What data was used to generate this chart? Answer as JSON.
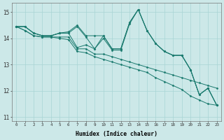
{
  "xlabel": "Humidex (Indice chaleur)",
  "xlim": [
    -0.5,
    23.5
  ],
  "ylim": [
    10.85,
    15.35
  ],
  "yticks": [
    11,
    12,
    13,
    14,
    15
  ],
  "xticks": [
    0,
    1,
    2,
    3,
    4,
    5,
    6,
    7,
    8,
    9,
    10,
    11,
    12,
    13,
    14,
    15,
    16,
    17,
    18,
    19,
    20,
    21,
    22,
    23
  ],
  "bg_color": "#cce8e8",
  "line_color": "#1a7a6e",
  "grid_color": "#a8d4d4",
  "lines": [
    [
      14.45,
      14.45,
      14.2,
      14.1,
      14.1,
      14.2,
      14.2,
      14.45,
      14.05,
      13.6,
      14.1,
      13.6,
      13.6,
      14.6,
      15.1,
      14.3,
      13.8,
      13.5,
      13.35,
      13.35,
      12.8,
      11.85,
      12.1,
      11.45
    ],
    [
      14.45,
      14.45,
      14.2,
      14.1,
      14.1,
      14.2,
      14.25,
      14.5,
      14.1,
      14.1,
      14.1,
      13.6,
      13.6,
      14.6,
      15.1,
      14.3,
      13.8,
      13.5,
      13.35,
      13.35,
      12.8,
      11.85,
      12.1,
      11.45
    ],
    [
      14.45,
      14.45,
      14.2,
      14.1,
      14.1,
      14.2,
      14.2,
      13.65,
      13.75,
      13.6,
      14.0,
      13.55,
      13.55,
      14.55,
      15.1,
      14.3,
      13.8,
      13.5,
      13.35,
      13.35,
      12.8,
      11.85,
      12.1,
      11.45
    ],
    [
      14.45,
      14.3,
      14.1,
      14.05,
      14.05,
      14.05,
      14.05,
      13.6,
      13.6,
      13.4,
      13.4,
      13.3,
      13.2,
      13.1,
      13.0,
      12.9,
      12.8,
      12.7,
      12.6,
      12.5,
      12.4,
      12.3,
      12.2,
      12.1
    ],
    [
      14.45,
      14.3,
      14.1,
      14.05,
      14.05,
      14.0,
      13.95,
      13.5,
      13.45,
      13.3,
      13.2,
      13.1,
      13.0,
      12.9,
      12.8,
      12.7,
      12.5,
      12.35,
      12.2,
      12.05,
      11.8,
      11.65,
      11.5,
      11.45
    ]
  ]
}
